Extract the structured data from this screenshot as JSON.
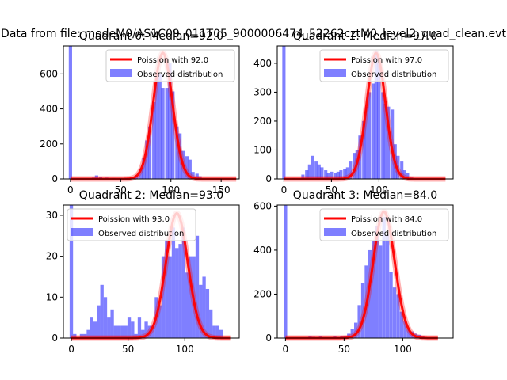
{
  "figure": {
    "suptitle": "Data from file: modeM0/AS1C09_011T05_9000006474_52262cztM0_level2_quad_clean.evt"
  },
  "colors": {
    "hist": "#0000ff",
    "hist_opacity": 0.5,
    "curve": "#ff0000",
    "curve_opacity": 0.5
  },
  "chart_data": [
    {
      "type": "bar",
      "title": "Quadrant 0: Median=92.0",
      "xlim": [
        -7,
        168
      ],
      "ylim": [
        0,
        760
      ],
      "xticks": [
        0,
        50,
        100,
        150
      ],
      "yticks": [
        0,
        200,
        400,
        600
      ],
      "bin_width": 3.3,
      "legend": {
        "location": "upper-right",
        "line_label": "Poission with 92.0",
        "bar_label": "Observed distribution"
      },
      "bins": [
        {
          "x": 0,
          "y": 760
        },
        {
          "x": 23,
          "y": 8
        },
        {
          "x": 26,
          "y": 20
        },
        {
          "x": 30,
          "y": 12
        },
        {
          "x": 36,
          "y": 8
        },
        {
          "x": 43,
          "y": 6
        },
        {
          "x": 50,
          "y": 5
        },
        {
          "x": 56,
          "y": 6
        },
        {
          "x": 63,
          "y": 10
        },
        {
          "x": 66,
          "y": 20
        },
        {
          "x": 70,
          "y": 60
        },
        {
          "x": 73,
          "y": 120
        },
        {
          "x": 76,
          "y": 220
        },
        {
          "x": 79,
          "y": 300
        },
        {
          "x": 83,
          "y": 440
        },
        {
          "x": 86,
          "y": 580
        },
        {
          "x": 89,
          "y": 600
        },
        {
          "x": 92,
          "y": 520
        },
        {
          "x": 96,
          "y": 520
        },
        {
          "x": 99,
          "y": 660
        },
        {
          "x": 102,
          "y": 500
        },
        {
          "x": 106,
          "y": 300
        },
        {
          "x": 109,
          "y": 260
        },
        {
          "x": 112,
          "y": 160
        },
        {
          "x": 116,
          "y": 130
        },
        {
          "x": 119,
          "y": 110
        },
        {
          "x": 122,
          "y": 40
        },
        {
          "x": 126,
          "y": 30
        },
        {
          "x": 129,
          "y": 15
        }
      ],
      "poisson": {
        "mean": 92.0,
        "x_range": [
          0,
          165
        ],
        "peak": 720
      }
    },
    {
      "type": "bar",
      "title": "Quadrant 1: Median=97.0",
      "xlim": [
        -7,
        178
      ],
      "ylim": [
        0,
        460
      ],
      "xticks": [
        0,
        50,
        100
      ],
      "yticks": [
        0,
        100,
        200,
        300,
        400
      ],
      "bin_width": 3.4,
      "legend": {
        "location": "upper-right",
        "line_label": "Poission with 97.0",
        "bar_label": "Observed distribution"
      },
      "bins": [
        {
          "x": 0,
          "y": 460
        },
        {
          "x": 10,
          "y": 3
        },
        {
          "x": 20,
          "y": 15
        },
        {
          "x": 24,
          "y": 30
        },
        {
          "x": 27,
          "y": 50
        },
        {
          "x": 30,
          "y": 80
        },
        {
          "x": 34,
          "y": 60
        },
        {
          "x": 37,
          "y": 50
        },
        {
          "x": 40,
          "y": 40
        },
        {
          "x": 44,
          "y": 30
        },
        {
          "x": 47,
          "y": 20
        },
        {
          "x": 50,
          "y": 25
        },
        {
          "x": 54,
          "y": 20
        },
        {
          "x": 57,
          "y": 25
        },
        {
          "x": 60,
          "y": 30
        },
        {
          "x": 64,
          "y": 35
        },
        {
          "x": 67,
          "y": 40
        },
        {
          "x": 70,
          "y": 60
        },
        {
          "x": 74,
          "y": 90
        },
        {
          "x": 77,
          "y": 100
        },
        {
          "x": 80,
          "y": 150
        },
        {
          "x": 84,
          "y": 200
        },
        {
          "x": 87,
          "y": 250
        },
        {
          "x": 90,
          "y": 300
        },
        {
          "x": 94,
          "y": 330
        },
        {
          "x": 97,
          "y": 440
        },
        {
          "x": 100,
          "y": 400
        },
        {
          "x": 104,
          "y": 300
        },
        {
          "x": 107,
          "y": 260
        },
        {
          "x": 110,
          "y": 250
        },
        {
          "x": 114,
          "y": 240
        },
        {
          "x": 117,
          "y": 120
        },
        {
          "x": 120,
          "y": 80
        },
        {
          "x": 124,
          "y": 60
        },
        {
          "x": 127,
          "y": 30
        },
        {
          "x": 130,
          "y": 20
        },
        {
          "x": 134,
          "y": 5
        }
      ],
      "poisson": {
        "mean": 97.0,
        "x_range": [
          0,
          170
        ],
        "peak": 435
      }
    },
    {
      "type": "bar",
      "title": "Quadrant 2: Median=93.0",
      "xlim": [
        -7,
        148
      ],
      "ylim": [
        0,
        32.5
      ],
      "xticks": [
        0,
        50,
        100
      ],
      "yticks": [
        0,
        10,
        20,
        30
      ],
      "bin_width": 3.0,
      "legend": {
        "location": "upper-left",
        "line_label": "Poission with 93.0",
        "bar_label": "Observed distribution"
      },
      "bins": [
        {
          "x": 0,
          "y": 32.5
        },
        {
          "x": 3,
          "y": 1
        },
        {
          "x": 9,
          "y": 1
        },
        {
          "x": 12,
          "y": 1
        },
        {
          "x": 15,
          "y": 2
        },
        {
          "x": 18,
          "y": 5
        },
        {
          "x": 21,
          "y": 4
        },
        {
          "x": 24,
          "y": 8
        },
        {
          "x": 27,
          "y": 13
        },
        {
          "x": 30,
          "y": 10
        },
        {
          "x": 33,
          "y": 5
        },
        {
          "x": 36,
          "y": 7
        },
        {
          "x": 39,
          "y": 3
        },
        {
          "x": 42,
          "y": 3
        },
        {
          "x": 45,
          "y": 3
        },
        {
          "x": 48,
          "y": 3
        },
        {
          "x": 51,
          "y": 5
        },
        {
          "x": 54,
          "y": 4
        },
        {
          "x": 57,
          "y": 1
        },
        {
          "x": 60,
          "y": 5
        },
        {
          "x": 63,
          "y": 2
        },
        {
          "x": 66,
          "y": 4
        },
        {
          "x": 69,
          "y": 3
        },
        {
          "x": 72,
          "y": 3
        },
        {
          "x": 75,
          "y": 10
        },
        {
          "x": 78,
          "y": 8
        },
        {
          "x": 81,
          "y": 20
        },
        {
          "x": 84,
          "y": 24
        },
        {
          "x": 87,
          "y": 20
        },
        {
          "x": 90,
          "y": 27
        },
        {
          "x": 93,
          "y": 22
        },
        {
          "x": 96,
          "y": 23
        },
        {
          "x": 99,
          "y": 27
        },
        {
          "x": 102,
          "y": 16
        },
        {
          "x": 105,
          "y": 20
        },
        {
          "x": 108,
          "y": 20
        },
        {
          "x": 111,
          "y": 25
        },
        {
          "x": 114,
          "y": 13
        },
        {
          "x": 117,
          "y": 15
        },
        {
          "x": 120,
          "y": 12
        },
        {
          "x": 123,
          "y": 7
        },
        {
          "x": 126,
          "y": 3
        },
        {
          "x": 129,
          "y": 3
        },
        {
          "x": 132,
          "y": 2
        }
      ],
      "poisson": {
        "mean": 93.0,
        "x_range": [
          0,
          140
        ],
        "peak": 30.5
      }
    },
    {
      "type": "bar",
      "title": "Quadrant 3: Median=84.0",
      "xlim": [
        -7,
        143
      ],
      "ylim": [
        0,
        605
      ],
      "xticks": [
        0,
        50,
        100
      ],
      "yticks": [
        0,
        200,
        400,
        600
      ],
      "bin_width": 2.9,
      "legend": {
        "location": "upper-right",
        "line_label": "Poission with 84.0",
        "bar_label": "Observed distribution"
      },
      "bins": [
        {
          "x": 0,
          "y": 605
        },
        {
          "x": 21,
          "y": 10
        },
        {
          "x": 24,
          "y": 6
        },
        {
          "x": 27,
          "y": 5
        },
        {
          "x": 30,
          "y": 8
        },
        {
          "x": 33,
          "y": 5
        },
        {
          "x": 36,
          "y": 4
        },
        {
          "x": 39,
          "y": 5
        },
        {
          "x": 42,
          "y": 10
        },
        {
          "x": 45,
          "y": 4
        },
        {
          "x": 48,
          "y": 8
        },
        {
          "x": 51,
          "y": 10
        },
        {
          "x": 54,
          "y": 20
        },
        {
          "x": 57,
          "y": 40
        },
        {
          "x": 60,
          "y": 70
        },
        {
          "x": 63,
          "y": 150
        },
        {
          "x": 66,
          "y": 250
        },
        {
          "x": 69,
          "y": 330
        },
        {
          "x": 72,
          "y": 400
        },
        {
          "x": 75,
          "y": 440
        },
        {
          "x": 78,
          "y": 510
        },
        {
          "x": 81,
          "y": 420
        },
        {
          "x": 84,
          "y": 550
        },
        {
          "x": 87,
          "y": 470
        },
        {
          "x": 90,
          "y": 300
        },
        {
          "x": 93,
          "y": 230
        },
        {
          "x": 96,
          "y": 200
        },
        {
          "x": 99,
          "y": 120
        },
        {
          "x": 102,
          "y": 80
        },
        {
          "x": 105,
          "y": 40
        },
        {
          "x": 108,
          "y": 30
        },
        {
          "x": 111,
          "y": 20
        },
        {
          "x": 114,
          "y": 15
        },
        {
          "x": 117,
          "y": 10
        }
      ],
      "poisson": {
        "mean": 84.0,
        "x_range": [
          0,
          130
        ],
        "peak": 575
      }
    }
  ]
}
